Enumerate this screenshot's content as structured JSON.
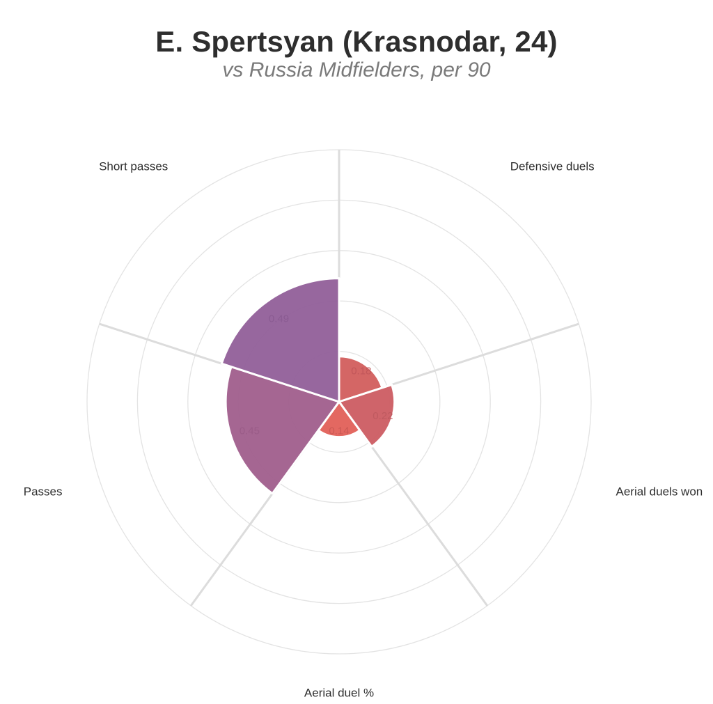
{
  "title": "E. Spertsyan (Krasnodar, 24)",
  "subtitle": "vs Russia Midfielders, per 90",
  "chart_data": {
    "type": "polar-bar",
    "title": "E. Spertsyan (Krasnodar, 24)",
    "subtitle": "vs Russia Midfielders, per 90",
    "rlim": [
      0,
      1
    ],
    "rings": 5,
    "grid": true,
    "categories": [
      "Defensive duels",
      "Aerial duels won",
      "Aerial duel %",
      "Passes",
      "Short passes"
    ],
    "values": [
      0.18,
      0.22,
      0.14,
      0.45,
      0.49
    ],
    "value_labels": [
      "0.18",
      "0.22",
      "0.14",
      "0.45",
      "0.49"
    ],
    "colors": [
      "#d2605f",
      "#cd5e64",
      "#e2625b",
      "#a1608e",
      "#93619a"
    ],
    "label_colors": [
      "#c2575a",
      "#bf5a60",
      "#cc5954",
      "#9a5c88",
      "#8a5b92"
    ]
  }
}
